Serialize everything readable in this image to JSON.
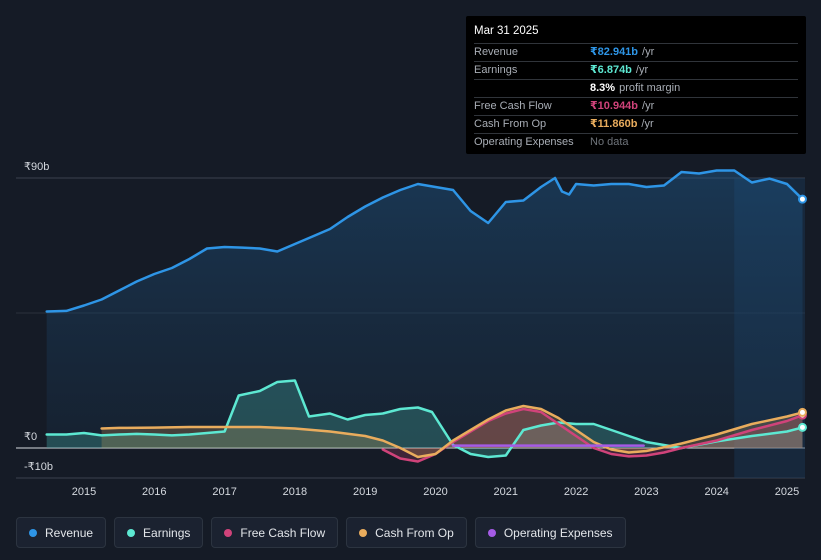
{
  "chart_data": {
    "type": "line",
    "ylim": [
      -10,
      90
    ],
    "y_ticks": [
      {
        "value": 90,
        "label": "₹90b"
      },
      {
        "value": 0,
        "label": "₹0"
      },
      {
        "value": -10,
        "label": "-₹10b"
      }
    ],
    "x_ticks": [
      "2015",
      "2016",
      "2017",
      "2018",
      "2019",
      "2020",
      "2021",
      "2022",
      "2023",
      "2024",
      "2025"
    ],
    "grid": true,
    "legend_position": "bottom",
    "series": [
      {
        "name": "Revenue",
        "color": "#2e95e6",
        "area": true,
        "points": [
          [
            2014.47,
            45.5
          ],
          [
            2014.75,
            45.7
          ],
          [
            2015.0,
            47.5
          ],
          [
            2015.25,
            49.5
          ],
          [
            2015.5,
            52.5
          ],
          [
            2015.75,
            55.5
          ],
          [
            2016.0,
            58
          ],
          [
            2016.25,
            60
          ],
          [
            2016.5,
            63
          ],
          [
            2016.75,
            66.5
          ],
          [
            2017.0,
            67
          ],
          [
            2017.25,
            66.8
          ],
          [
            2017.5,
            66.5
          ],
          [
            2017.75,
            65.5
          ],
          [
            2018.0,
            68
          ],
          [
            2018.25,
            70.5
          ],
          [
            2018.5,
            73
          ],
          [
            2018.75,
            77
          ],
          [
            2019.0,
            80.5
          ],
          [
            2019.25,
            83.5
          ],
          [
            2019.5,
            86
          ],
          [
            2019.75,
            88
          ],
          [
            2020.0,
            87
          ],
          [
            2020.25,
            86
          ],
          [
            2020.5,
            79
          ],
          [
            2020.75,
            75
          ],
          [
            2021.0,
            82
          ],
          [
            2021.25,
            82.5
          ],
          [
            2021.5,
            87
          ],
          [
            2021.7,
            90
          ],
          [
            2021.8,
            85.5
          ],
          [
            2021.9,
            84.5
          ],
          [
            2022.0,
            88
          ],
          [
            2022.25,
            87.5
          ],
          [
            2022.5,
            88
          ],
          [
            2022.75,
            88
          ],
          [
            2023.0,
            87
          ],
          [
            2023.25,
            87.5
          ],
          [
            2023.5,
            92
          ],
          [
            2023.75,
            91.5
          ],
          [
            2024.0,
            92.5
          ],
          [
            2024.25,
            92.5
          ],
          [
            2024.5,
            88.5
          ],
          [
            2024.75,
            89.8
          ],
          [
            2025.0,
            88
          ],
          [
            2025.22,
            82.941
          ]
        ]
      },
      {
        "name": "Earnings",
        "color": "#5de8d2",
        "area": true,
        "points": [
          [
            2014.47,
            4.5
          ],
          [
            2014.75,
            4.5
          ],
          [
            2015.0,
            5
          ],
          [
            2015.25,
            4.2
          ],
          [
            2015.5,
            4.5
          ],
          [
            2015.75,
            4.7
          ],
          [
            2016.0,
            4.5
          ],
          [
            2016.25,
            4.2
          ],
          [
            2016.5,
            4.5
          ],
          [
            2016.75,
            5
          ],
          [
            2017.0,
            5.5
          ],
          [
            2017.2,
            17.5
          ],
          [
            2017.5,
            19
          ],
          [
            2017.75,
            22
          ],
          [
            2018.0,
            22.5
          ],
          [
            2018.2,
            10.5
          ],
          [
            2018.5,
            11.5
          ],
          [
            2018.75,
            9.5
          ],
          [
            2019.0,
            11
          ],
          [
            2019.25,
            11.5
          ],
          [
            2019.5,
            13
          ],
          [
            2019.75,
            13.5
          ],
          [
            2019.95,
            12
          ],
          [
            2020.25,
            1
          ],
          [
            2020.5,
            -2
          ],
          [
            2020.75,
            -3
          ],
          [
            2021.0,
            -2.5
          ],
          [
            2021.25,
            6
          ],
          [
            2021.5,
            7.5
          ],
          [
            2021.75,
            8.5
          ],
          [
            2022.0,
            8
          ],
          [
            2022.25,
            8
          ],
          [
            2022.5,
            6
          ],
          [
            2022.75,
            4
          ],
          [
            2023.0,
            2
          ],
          [
            2023.5,
            0
          ],
          [
            2024.0,
            2.2
          ],
          [
            2024.5,
            4
          ],
          [
            2025.0,
            5.5
          ],
          [
            2025.22,
            6.874
          ]
        ]
      },
      {
        "name": "Free Cash Flow",
        "color": "#d0437a",
        "area": true,
        "points": [
          [
            2019.25,
            -0.5
          ],
          [
            2019.5,
            -3.5
          ],
          [
            2019.75,
            -4.5
          ],
          [
            2020.0,
            -2
          ],
          [
            2020.25,
            2
          ],
          [
            2020.5,
            5.5
          ],
          [
            2020.75,
            9
          ],
          [
            2021.0,
            11.5
          ],
          [
            2021.25,
            13
          ],
          [
            2021.5,
            12
          ],
          [
            2021.75,
            8
          ],
          [
            2022.0,
            4
          ],
          [
            2022.25,
            0
          ],
          [
            2022.5,
            -2
          ],
          [
            2022.75,
            -2.8
          ],
          [
            2023.0,
            -2.5
          ],
          [
            2023.25,
            -1.5
          ],
          [
            2023.5,
            0
          ],
          [
            2024.0,
            2.5
          ],
          [
            2024.5,
            6
          ],
          [
            2025.0,
            9
          ],
          [
            2025.22,
            10.944
          ]
        ]
      },
      {
        "name": "Cash From Op",
        "color": "#e9ac5d",
        "area": true,
        "points": [
          [
            2015.25,
            6.5
          ],
          [
            2015.5,
            6.7
          ],
          [
            2016.0,
            6.8
          ],
          [
            2016.5,
            7
          ],
          [
            2017.0,
            7
          ],
          [
            2017.5,
            7
          ],
          [
            2018.0,
            6.5
          ],
          [
            2018.5,
            5.5
          ],
          [
            2019.0,
            4
          ],
          [
            2019.25,
            2.5
          ],
          [
            2019.5,
            0
          ],
          [
            2019.75,
            -3
          ],
          [
            2020.0,
            -2
          ],
          [
            2020.25,
            2.5
          ],
          [
            2020.5,
            6
          ],
          [
            2020.75,
            9.5
          ],
          [
            2021.0,
            12.5
          ],
          [
            2021.25,
            14
          ],
          [
            2021.5,
            13
          ],
          [
            2021.75,
            10
          ],
          [
            2022.0,
            6
          ],
          [
            2022.25,
            2
          ],
          [
            2022.5,
            -0.5
          ],
          [
            2022.75,
            -1.5
          ],
          [
            2023.0,
            -1
          ],
          [
            2023.5,
            1.5
          ],
          [
            2024.0,
            4.5
          ],
          [
            2024.5,
            8
          ],
          [
            2025.0,
            10.5
          ],
          [
            2025.22,
            11.86
          ]
        ]
      },
      {
        "name": "Operating Expenses",
        "color": "#a55be6",
        "area": false,
        "points": [
          [
            2020.25,
            0.8
          ],
          [
            2022.96,
            0.8
          ]
        ]
      }
    ],
    "forecast_shade_from": 2024.25
  },
  "tooltip": {
    "date": "Mar 31 2025",
    "rows": [
      {
        "name": "Revenue",
        "value": "₹82.941b",
        "unit": "/yr",
        "color": "#2e95e6"
      },
      {
        "name": "Earnings",
        "value": "₹6.874b",
        "unit": "/yr",
        "color": "#5de8d2"
      },
      {
        "name": "",
        "value": "8.3%",
        "unit": "profit margin",
        "color": "#ffffff"
      },
      {
        "name": "Free Cash Flow",
        "value": "₹10.944b",
        "unit": "/yr",
        "color": "#d0437a"
      },
      {
        "name": "Cash From Op",
        "value": "₹11.860b",
        "unit": "/yr",
        "color": "#e9ac5d"
      },
      {
        "name": "Operating Expenses",
        "value": "No data",
        "unit": "",
        "color": "#6f747b"
      }
    ]
  },
  "legend": [
    {
      "label": "Revenue",
      "color": "#2e95e6"
    },
    {
      "label": "Earnings",
      "color": "#5de8d2"
    },
    {
      "label": "Free Cash Flow",
      "color": "#d0437a"
    },
    {
      "label": "Cash From Op",
      "color": "#e9ac5d"
    },
    {
      "label": "Operating Expenses",
      "color": "#a55be6"
    }
  ]
}
